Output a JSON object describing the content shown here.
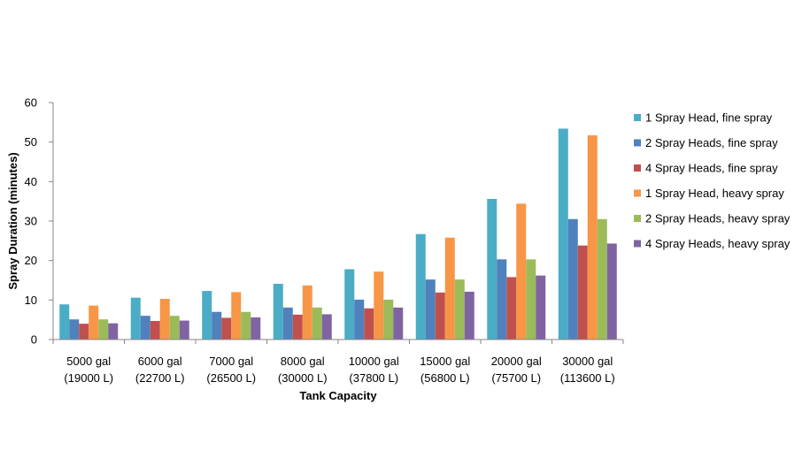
{
  "chart_data": {
    "type": "bar",
    "title": "",
    "xlabel": "Tank Capacity",
    "ylabel": "Spray Duration (minutes)",
    "ylim": [
      0,
      60
    ],
    "yticks": [
      0,
      10,
      20,
      30,
      40,
      50,
      60
    ],
    "grid": false,
    "legend_position": "right",
    "categories": [
      [
        "5000 gal",
        "(19000 L)"
      ],
      [
        "6000 gal",
        "(22700 L)"
      ],
      [
        "7000 gal",
        "(26500 L)"
      ],
      [
        "8000 gal",
        "(30000 L)"
      ],
      [
        "10000 gal",
        "(37800 L)"
      ],
      [
        "15000 gal",
        "(56800 L)"
      ],
      [
        "20000 gal",
        "(75700 L)"
      ],
      [
        "30000 gal",
        "(113600 L)"
      ]
    ],
    "series": [
      {
        "name": "1 Spray Head, fine spray",
        "color": "#4BACC6",
        "values": [
          8.9,
          10.6,
          12.3,
          14.1,
          17.8,
          26.7,
          35.6,
          53.4
        ]
      },
      {
        "name": "2 Spray Heads, fine spray",
        "color": "#4F81BD",
        "values": [
          5.1,
          6.0,
          7.0,
          8.1,
          10.1,
          15.2,
          20.3,
          30.5
        ]
      },
      {
        "name": "4 Spray Heads, fine spray",
        "color": "#C0504D",
        "values": [
          4.0,
          4.7,
          5.5,
          6.3,
          7.9,
          11.9,
          15.8,
          23.8
        ]
      },
      {
        "name": "1 Spray Head, heavy spray",
        "color": "#F79646",
        "values": [
          8.6,
          10.3,
          12.0,
          13.7,
          17.2,
          25.8,
          34.4,
          51.7
        ]
      },
      {
        "name": "2 Spray Heads, heavy spray",
        "color": "#9BBB59",
        "values": [
          5.1,
          6.0,
          7.0,
          8.1,
          10.1,
          15.2,
          20.3,
          30.5
        ]
      },
      {
        "name": "4 Spray Heads, heavy spray",
        "color": "#8064A2",
        "values": [
          4.1,
          4.8,
          5.6,
          6.4,
          8.1,
          12.1,
          16.2,
          24.3
        ]
      }
    ]
  }
}
